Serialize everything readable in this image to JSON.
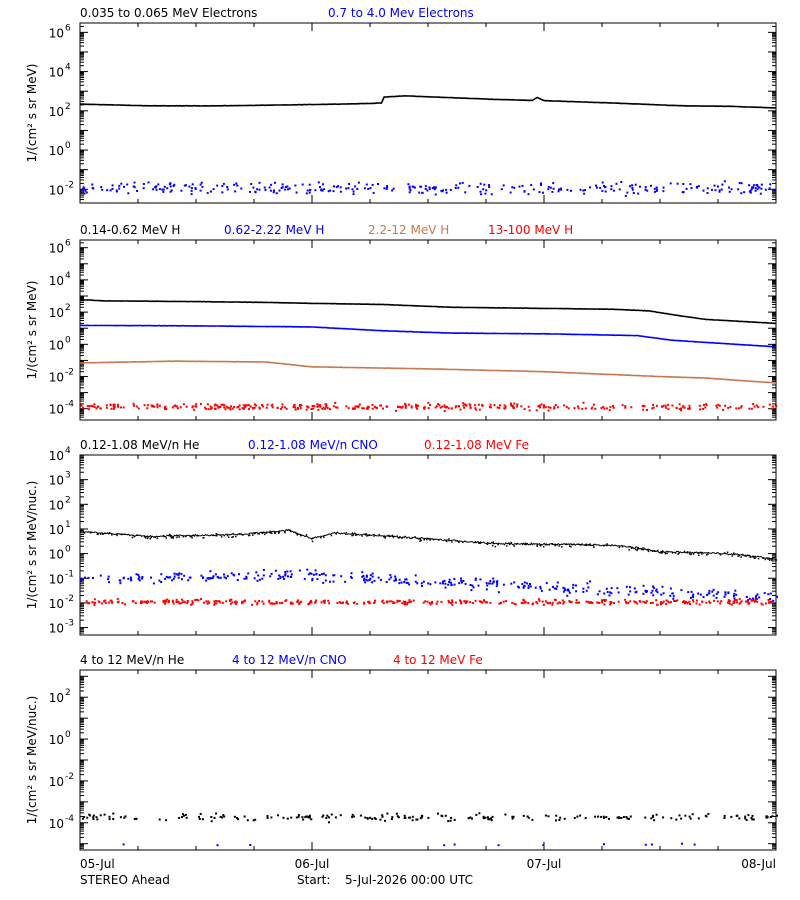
{
  "colors": {
    "black": "#000000",
    "blue": "#0000ff",
    "tan": "#c87850",
    "red": "#ff0000"
  },
  "x_axis": {
    "ticks": [
      "05-Jul",
      "06-Jul",
      "07-Jul",
      "08-Jul"
    ],
    "range_days": [
      0,
      3
    ]
  },
  "footer": {
    "left": "STEREO Ahead",
    "start_label": "Start:",
    "start_value": "5-Jul-2026 00:00 UTC"
  },
  "chart_data": [
    {
      "type": "line",
      "yscale": "log",
      "ylabel": "1/(cm² s sr MeV)",
      "ylim": [
        0.002,
        3000000
      ],
      "yticks": [
        {
          "value": 1000000,
          "label": "10",
          "exp": "6"
        },
        {
          "value": 10000,
          "label": "10",
          "exp": "4"
        },
        {
          "value": 100,
          "label": "10",
          "exp": "2"
        },
        {
          "value": 1,
          "label": "10",
          "exp": "0"
        },
        {
          "value": 0.01,
          "label": "10",
          "exp": "-2"
        }
      ],
      "legend": [
        {
          "text": "0.035 to 0.065 MeV Electrons",
          "color": "#000000"
        },
        {
          "text": "0.7 to 4.0 Mev Electrons",
          "color": "#0000ff"
        }
      ],
      "series": [
        {
          "name": "0.035 to 0.065 MeV Electrons",
          "color": "#000000",
          "style": "line",
          "points": [
            [
              0,
              220
            ],
            [
              0.3,
              180
            ],
            [
              0.6,
              180
            ],
            [
              0.9,
              200
            ],
            [
              1.2,
              230
            ],
            [
              1.3,
              250
            ],
            [
              1.31,
              500
            ],
            [
              1.4,
              580
            ],
            [
              1.5,
              520
            ],
            [
              1.8,
              380
            ],
            [
              1.95,
              340
            ],
            [
              1.97,
              480
            ],
            [
              2.0,
              330
            ],
            [
              2.3,
              250
            ],
            [
              2.6,
              180
            ],
            [
              2.8,
              170
            ],
            [
              3.0,
              140
            ]
          ]
        },
        {
          "name": "0.7 to 4.0 Mev Electrons",
          "color": "#0000ff",
          "style": "scatter",
          "center": 0.012,
          "spread": 0.45,
          "points_per_day": 110
        }
      ]
    },
    {
      "type": "line",
      "yscale": "log",
      "ylabel": "1/(cm² s sr MeV)",
      "ylim": [
        2e-05,
        3000000
      ],
      "yticks": [
        {
          "value": 1000000,
          "label": "10",
          "exp": "6"
        },
        {
          "value": 10000,
          "label": "10",
          "exp": "4"
        },
        {
          "value": 100,
          "label": "10",
          "exp": "2"
        },
        {
          "value": 1,
          "label": "10",
          "exp": "0"
        },
        {
          "value": 0.01,
          "label": "10",
          "exp": "-2"
        },
        {
          "value": 0.0001,
          "label": "10",
          "exp": "-4"
        }
      ],
      "legend": [
        {
          "text": "0.14-0.62 MeV H",
          "color": "#000000"
        },
        {
          "text": "0.62-2.22 MeV H",
          "color": "#0000ff"
        },
        {
          "text": "2.2-12 MeV H",
          "color": "#c87850"
        },
        {
          "text": "13-100 MeV H",
          "color": "#ff0000"
        }
      ],
      "series": [
        {
          "name": "0.14-0.62 MeV H",
          "color": "#000000",
          "style": "line",
          "points": [
            [
              0,
              600
            ],
            [
              0.1,
              500
            ],
            [
              0.5,
              450
            ],
            [
              0.8,
              400
            ],
            [
              1.0,
              350
            ],
            [
              1.3,
              300
            ],
            [
              1.6,
              200
            ],
            [
              2.0,
              170
            ],
            [
              2.3,
              150
            ],
            [
              2.45,
              120
            ],
            [
              2.6,
              55
            ],
            [
              2.7,
              35
            ],
            [
              3.0,
              20
            ]
          ]
        },
        {
          "name": "0.62-2.22 MeV H",
          "color": "#0000ff",
          "style": "line",
          "points": [
            [
              0,
              15
            ],
            [
              0.5,
              14
            ],
            [
              1.0,
              12
            ],
            [
              1.3,
              7
            ],
            [
              1.6,
              5
            ],
            [
              2.0,
              4.5
            ],
            [
              2.4,
              3.5
            ],
            [
              2.55,
              1.8
            ],
            [
              2.7,
              1.3
            ],
            [
              3.0,
              0.7
            ]
          ]
        },
        {
          "name": "2.2-12 MeV H",
          "color": "#c87850",
          "style": "line",
          "points": [
            [
              0,
              0.07
            ],
            [
              0.4,
              0.09
            ],
            [
              0.8,
              0.08
            ],
            [
              1.0,
              0.04
            ],
            [
              1.5,
              0.03
            ],
            [
              2.0,
              0.02
            ],
            [
              2.5,
              0.01
            ],
            [
              2.7,
              0.008
            ],
            [
              2.9,
              0.005
            ],
            [
              3.0,
              0.004
            ]
          ]
        },
        {
          "name": "13-100 MeV H",
          "color": "#ff0000",
          "style": "scatter",
          "center": 0.00015,
          "spread": 0.3,
          "points_per_day": 130
        }
      ]
    },
    {
      "type": "line",
      "yscale": "log",
      "ylabel": "1/(cm² s sr MeV/nuc.)",
      "ylim": [
        0.0005,
        10000
      ],
      "yticks": [
        {
          "value": 10000,
          "label": "10",
          "exp": "4"
        },
        {
          "value": 1000,
          "label": "10",
          "exp": "3"
        },
        {
          "value": 100,
          "label": "10",
          "exp": "2"
        },
        {
          "value": 10,
          "label": "10",
          "exp": "1"
        },
        {
          "value": 1,
          "label": "10",
          "exp": "0"
        },
        {
          "value": 0.1,
          "label": "10",
          "exp": "-1"
        },
        {
          "value": 0.01,
          "label": "10",
          "exp": "-2"
        },
        {
          "value": 0.001,
          "label": "10",
          "exp": "-3"
        }
      ],
      "legend": [
        {
          "text": "0.12-1.08 MeV/n He",
          "color": "#000000"
        },
        {
          "text": "0.12-1.08 MeV/n CNO",
          "color": "#0000ff"
        },
        {
          "text": "0.12-1.08 MeV Fe",
          "color": "#ff0000"
        }
      ],
      "series": [
        {
          "name": "0.12-1.08 MeV/n He",
          "color": "#000000",
          "style": "noisyline",
          "points": [
            [
              0,
              8
            ],
            [
              0.3,
              5
            ],
            [
              0.7,
              6
            ],
            [
              0.9,
              9
            ],
            [
              1.0,
              4
            ],
            [
              1.1,
              7
            ],
            [
              1.5,
              4
            ],
            [
              1.8,
              2.5
            ],
            [
              2.2,
              2.3
            ],
            [
              2.35,
              2.0
            ],
            [
              2.5,
              1.2
            ],
            [
              2.8,
              1.0
            ],
            [
              3.0,
              0.6
            ]
          ]
        },
        {
          "name": "0.12-1.08 MeV/n CNO",
          "color": "#0000ff",
          "style": "scatter",
          "center": 0.1,
          "spread": 0.35,
          "points_per_day": 120,
          "trend": [
            [
              0,
              0.1
            ],
            [
              0.9,
              0.15
            ],
            [
              1.5,
              0.08
            ],
            [
              2.2,
              0.04
            ],
            [
              3.0,
              0.02
            ]
          ]
        },
        {
          "name": "0.12-1.08 MeV Fe",
          "color": "#ff0000",
          "style": "scatter",
          "center": 0.012,
          "spread": 0.15,
          "points_per_day": 140
        }
      ]
    },
    {
      "type": "scatter",
      "yscale": "log",
      "ylabel": "1/(cm² s sr MeV/nuc.)",
      "ylim": [
        5e-06,
        2000
      ],
      "yticks": [
        {
          "value": 100,
          "label": "10",
          "exp": "2"
        },
        {
          "value": 1,
          "label": "10",
          "exp": "0"
        },
        {
          "value": 0.01,
          "label": "10",
          "exp": "-2"
        },
        {
          "value": 0.0001,
          "label": "10",
          "exp": "-4"
        }
      ],
      "legend": [
        {
          "text": "4 to 12 MeV/n He",
          "color": "#000000"
        },
        {
          "text": "4 to 12 MeV/n CNO",
          "color": "#0000ff"
        },
        {
          "text": "4 to 12 MeV Fe",
          "color": "#ff0000"
        }
      ],
      "series": [
        {
          "name": "4 to 12 MeV/n He",
          "color": "#000000",
          "style": "scatter",
          "center": 0.0002,
          "spread": 0.25,
          "points_per_day": 70
        },
        {
          "name": "4 to 12 MeV/n CNO",
          "color": "#0000ff",
          "style": "scatter",
          "center": 1e-05,
          "spread": 0.05,
          "points_per_day": 4
        }
      ]
    }
  ]
}
